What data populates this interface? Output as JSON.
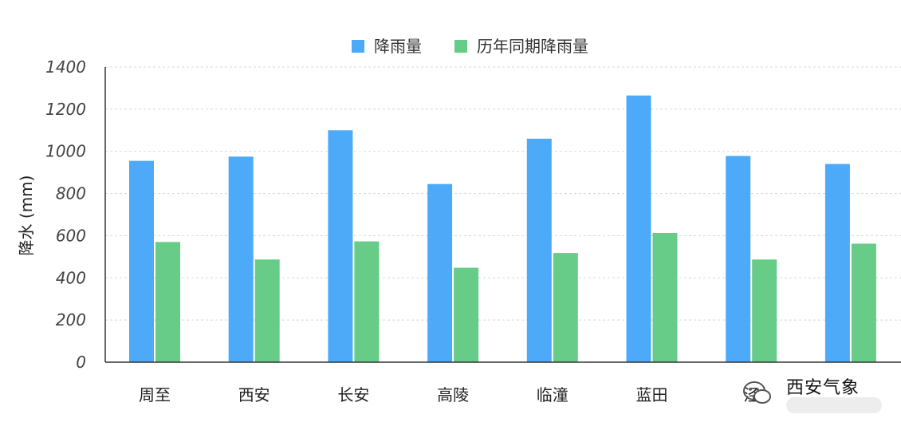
{
  "chart_data": {
    "type": "bar",
    "categories": [
      "周至",
      "西安",
      "长安",
      "高陵",
      "临潼",
      "蓝田",
      "泾",
      ""
    ],
    "series": [
      {
        "name": "降雨量",
        "color": "#4DAAF8",
        "values": [
          955,
          975,
          1100,
          845,
          1060,
          1265,
          978,
          940
        ]
      },
      {
        "name": "历年同期降雨量",
        "color": "#66CC88",
        "values": [
          570,
          487,
          573,
          448,
          518,
          613,
          487,
          562
        ]
      }
    ],
    "xlabel": "",
    "ylabel": "降水 (mm)",
    "ylim": [
      0,
      1400
    ],
    "yticks": [
      0,
      200,
      400,
      600,
      800,
      1000,
      1200,
      1400
    ],
    "grid": true,
    "legend": "top-center"
  },
  "watermark": {
    "text": "西安气象",
    "icon": "wechat-icon"
  }
}
